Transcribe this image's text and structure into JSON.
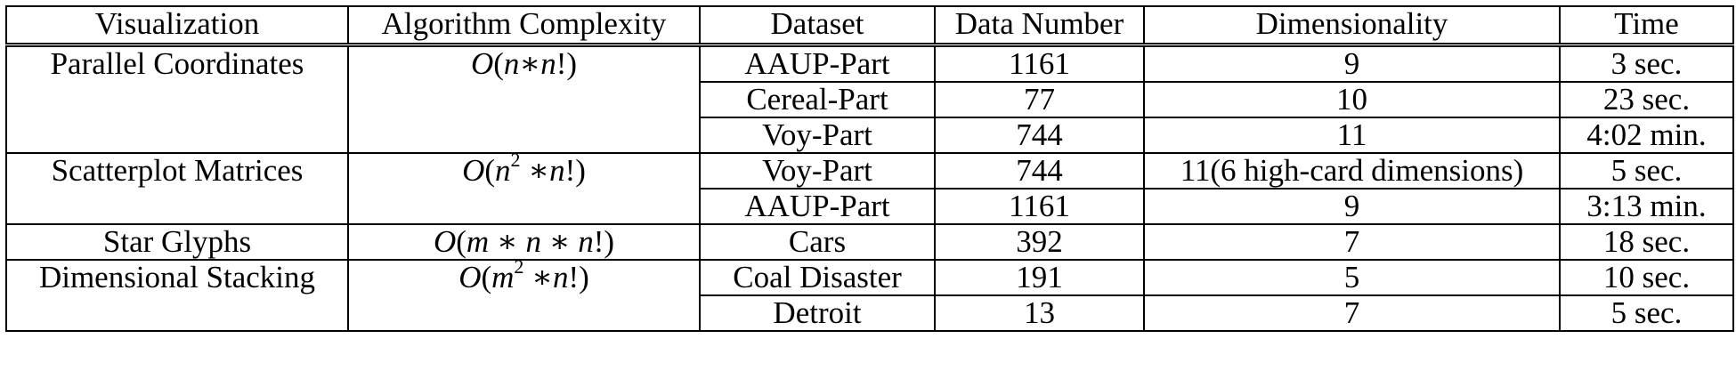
{
  "headers": {
    "visualization": "Visualization",
    "complexity": "Algorithm Complexity",
    "dataset": "Dataset",
    "data_number": "Data Number",
    "dimensionality": "Dimensionality",
    "time": "Time"
  },
  "groups": [
    {
      "visualization": "Parallel Coordinates",
      "complexity": "O(n∗n!)",
      "rows": [
        {
          "dataset": "AAUP-Part",
          "data_number": "1161",
          "dimensionality": "9",
          "time": "3 sec."
        },
        {
          "dataset": "Cereal-Part",
          "data_number": "77",
          "dimensionality": "10",
          "time": "23 sec."
        },
        {
          "dataset": "Voy-Part",
          "data_number": "744",
          "dimensionality": "11",
          "time": "4:02 min."
        }
      ]
    },
    {
      "visualization": "Scatterplot Matrices",
      "complexity": "O(n^2∗n!)",
      "rows": [
        {
          "dataset": "Voy-Part",
          "data_number": "744",
          "dimensionality": "11(6 high-card dimensions)",
          "time": "5 sec."
        },
        {
          "dataset": "AAUP-Part",
          "data_number": "1161",
          "dimensionality": "9",
          "time": "3:13 min."
        }
      ]
    },
    {
      "visualization": "Star Glyphs",
      "complexity": "O(m∗n∗n!)",
      "rows": [
        {
          "dataset": "Cars",
          "data_number": "392",
          "dimensionality": "7",
          "time": "18 sec."
        }
      ]
    },
    {
      "visualization": "Dimensional Stacking",
      "complexity": "O(m^2∗n!)",
      "rows": [
        {
          "dataset": "Coal Disaster",
          "data_number": "191",
          "dimensionality": "5",
          "time": "10 sec."
        },
        {
          "dataset": "Detroit",
          "data_number": "13",
          "dimensionality": "7",
          "time": "5 sec."
        }
      ]
    }
  ]
}
